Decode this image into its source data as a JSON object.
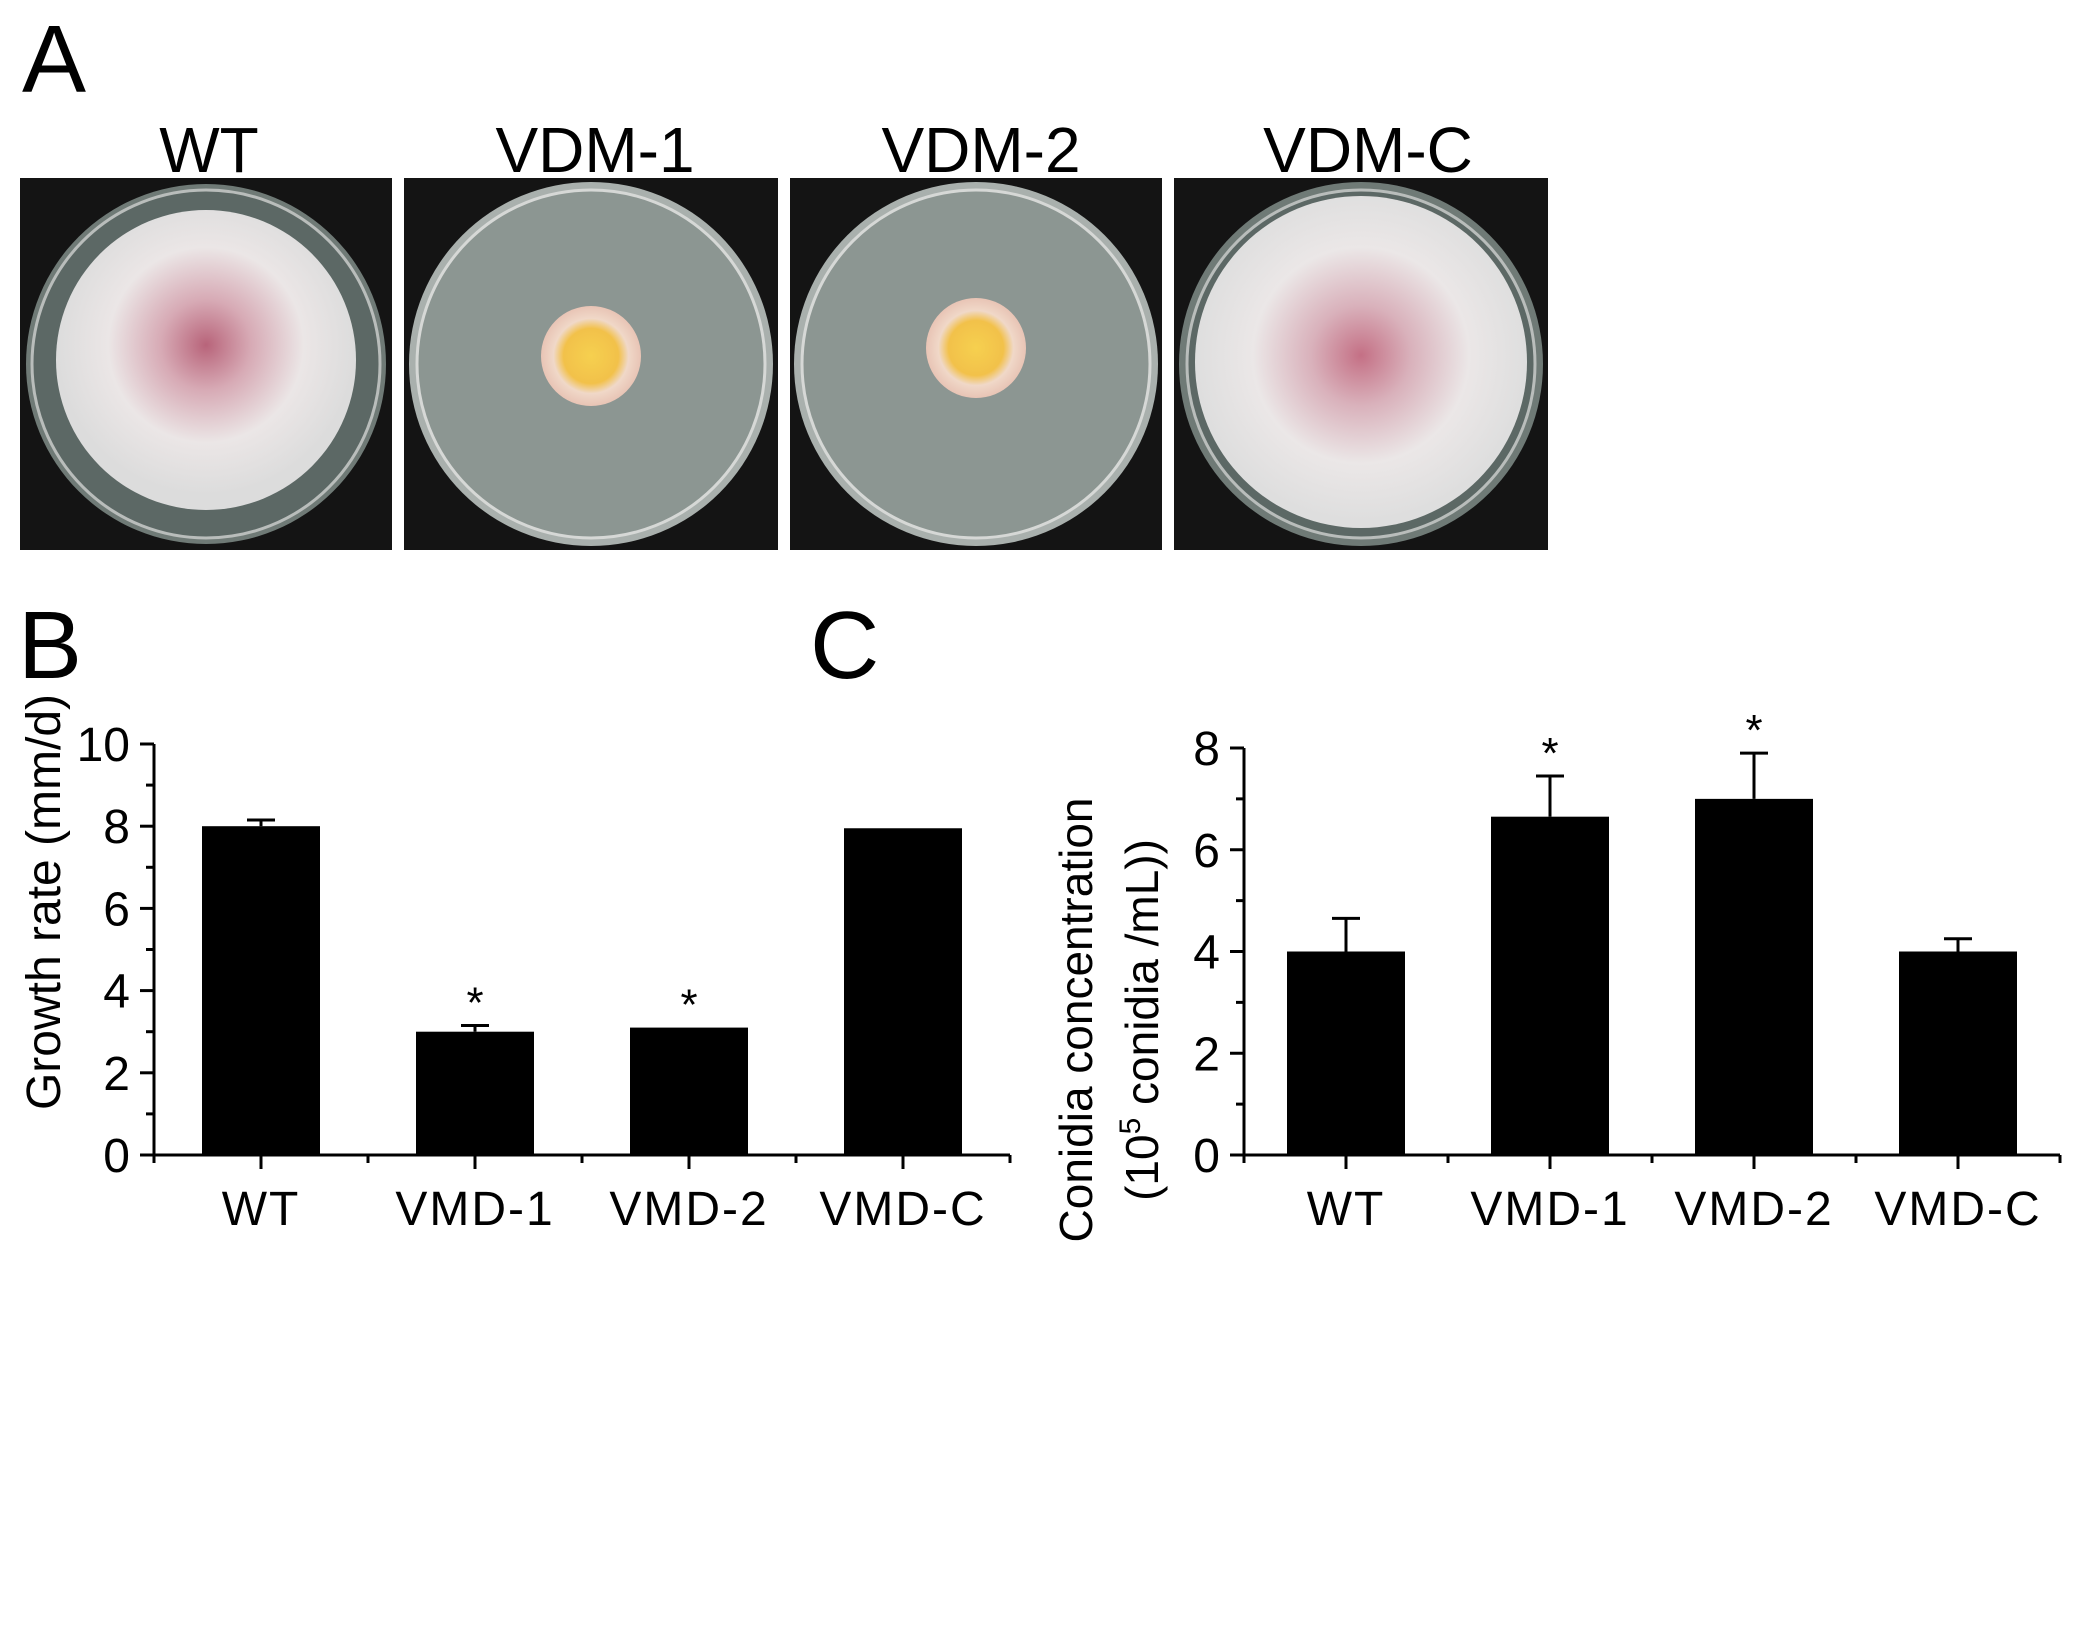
{
  "panels": {
    "a_letter": "A",
    "b_letter": "B",
    "c_letter": "C"
  },
  "plates": [
    {
      "label": "WT",
      "colony": "large-white",
      "pigment": "#b5596f"
    },
    {
      "label": "VDM-1",
      "colony": "small-yellow",
      "pigment": "#f2c64d"
    },
    {
      "label": "VDM-2",
      "colony": "small-yellow",
      "pigment": "#f2c64d"
    },
    {
      "label": "VDM-C",
      "colony": "large-white",
      "pigment": "#b5596f"
    }
  ],
  "chart_data": [
    {
      "type": "bar",
      "panel": "B",
      "categories": [
        "WT",
        "VMD-1",
        "VMD-2",
        "VMD-C"
      ],
      "values": [
        8.0,
        3.0,
        3.1,
        7.95
      ],
      "errors": [
        0.15,
        0.15,
        0.0,
        0.0
      ],
      "significance": [
        "",
        "*",
        "*",
        ""
      ],
      "ylabel": "Growth rate (mm/d)",
      "ylim": [
        0,
        10
      ],
      "yticks": [
        "0",
        "2",
        "4",
        "6",
        "8",
        "10"
      ],
      "bar_color": "#000000",
      "grid": false
    },
    {
      "type": "bar",
      "panel": "C",
      "categories": [
        "WT",
        "VMD-1",
        "VMD-2",
        "VMD-C"
      ],
      "values": [
        4.0,
        6.65,
        7.0,
        4.0
      ],
      "errors": [
        0.65,
        0.8,
        0.9,
        0.25
      ],
      "significance": [
        "",
        "*",
        "*",
        ""
      ],
      "ylabel_line1": "Conidia concentration",
      "ylabel_line2_pre": "(10",
      "ylabel_line2_sup": "5",
      "ylabel_line2_post": " conidia /mL))",
      "ylim": [
        0,
        8
      ],
      "yticks": [
        "0",
        "2",
        "4",
        "6",
        "8"
      ],
      "bar_color": "#000000",
      "grid": false
    }
  ]
}
